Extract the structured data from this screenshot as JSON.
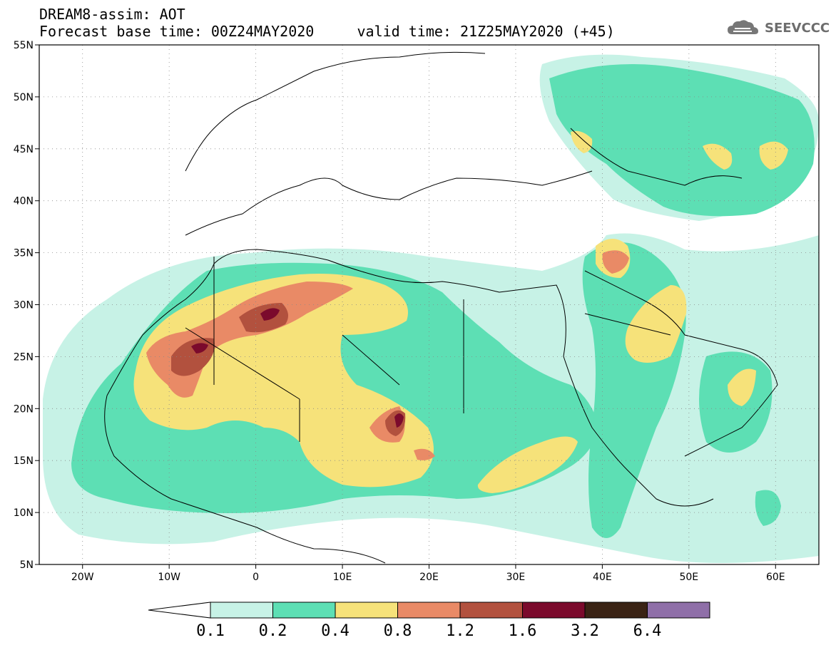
{
  "header": {
    "title_line1": "DREAM8-assim: AOT",
    "title_line2": "Forecast base time: 00Z24MAY2020     valid time: 21Z25MAY2020 (+45)",
    "logo_text": "SEEVCCC"
  },
  "map": {
    "lon_range": [
      -25,
      65
    ],
    "lat_range": [
      5,
      55
    ],
    "lat_ticks": [
      {
        "v": 55,
        "label": "55N"
      },
      {
        "v": 50,
        "label": "50N"
      },
      {
        "v": 45,
        "label": "45N"
      },
      {
        "v": 40,
        "label": "40N"
      },
      {
        "v": 35,
        "label": "35N"
      },
      {
        "v": 30,
        "label": "30N"
      },
      {
        "v": 25,
        "label": "25N"
      },
      {
        "v": 20,
        "label": "20N"
      },
      {
        "v": 15,
        "label": "15N"
      },
      {
        "v": 10,
        "label": "10N"
      },
      {
        "v": 5,
        "label": "5N"
      }
    ],
    "lon_ticks": [
      {
        "v": -20,
        "label": "20W"
      },
      {
        "v": -10,
        "label": "10W"
      },
      {
        "v": 0,
        "label": "0"
      },
      {
        "v": 10,
        "label": "10E"
      },
      {
        "v": 20,
        "label": "20E"
      },
      {
        "v": 30,
        "label": "30E"
      },
      {
        "v": 40,
        "label": "40E"
      },
      {
        "v": 50,
        "label": "50E"
      },
      {
        "v": 60,
        "label": "60E"
      }
    ],
    "grid": "dotted",
    "colorbar": {
      "labels": [
        "0.1",
        "0.2",
        "0.4",
        "0.8",
        "1.2",
        "1.6",
        "3.2",
        "6.4"
      ],
      "colors": [
        "#ffffff",
        "#c7f2e6",
        "#5ddfb4",
        "#f6e27a",
        "#e98a66",
        "#b2513e",
        "#7b0a2c",
        "#3a2314",
        "#8f6fa8"
      ]
    }
  }
}
